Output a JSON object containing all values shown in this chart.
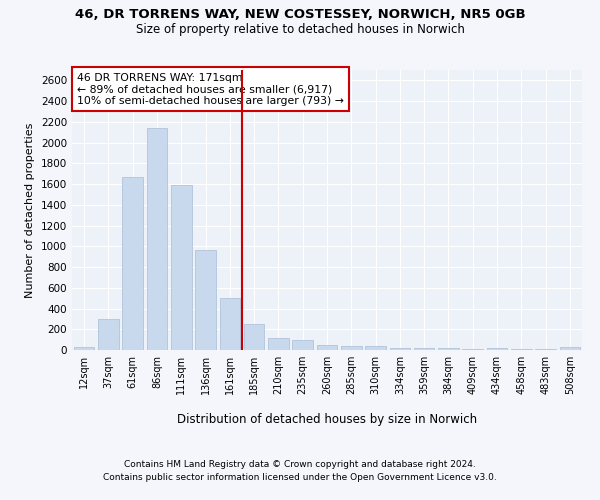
{
  "title1": "46, DR TORRENS WAY, NEW COSTESSEY, NORWICH, NR5 0GB",
  "title2": "Size of property relative to detached houses in Norwich",
  "xlabel": "Distribution of detached houses by size in Norwich",
  "ylabel": "Number of detached properties",
  "categories": [
    "12sqm",
    "37sqm",
    "61sqm",
    "86sqm",
    "111sqm",
    "136sqm",
    "161sqm",
    "185sqm",
    "210sqm",
    "235sqm",
    "260sqm",
    "285sqm",
    "310sqm",
    "334sqm",
    "359sqm",
    "384sqm",
    "409sqm",
    "434sqm",
    "458sqm",
    "483sqm",
    "508sqm"
  ],
  "values": [
    25,
    300,
    1670,
    2140,
    1595,
    960,
    500,
    250,
    120,
    100,
    50,
    35,
    35,
    20,
    20,
    20,
    5,
    20,
    5,
    5,
    25
  ],
  "bar_color": "#c8d8ed",
  "bar_edge_color": "#aabdd8",
  "vline_color": "#cc0000",
  "annotation_box_text": "46 DR TORRENS WAY: 171sqm\n← 89% of detached houses are smaller (6,917)\n10% of semi-detached houses are larger (793) →",
  "ylim": [
    0,
    2700
  ],
  "yticks": [
    0,
    200,
    400,
    600,
    800,
    1000,
    1200,
    1400,
    1600,
    1800,
    2000,
    2200,
    2400,
    2600
  ],
  "footer1": "Contains HM Land Registry data © Crown copyright and database right 2024.",
  "footer2": "Contains public sector information licensed under the Open Government Licence v3.0.",
  "bg_color": "#f4f6fb",
  "plot_bg_color": "#edf1f8"
}
